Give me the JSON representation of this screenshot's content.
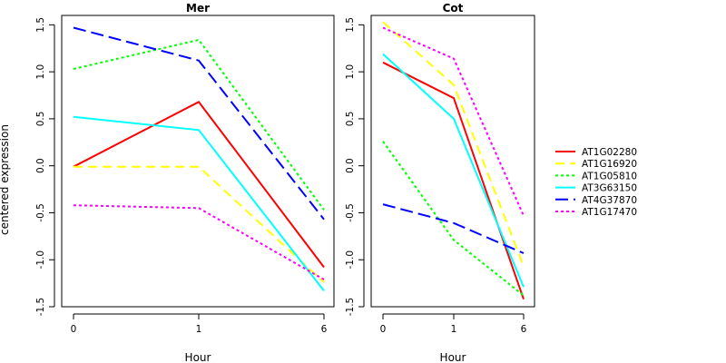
{
  "chart_data": {
    "type": "line",
    "ylabel": "centered expression",
    "xlabel": "Hour",
    "x": [
      "0",
      "1",
      "6"
    ],
    "ylim": [
      -1.5,
      1.6
    ],
    "yticks": [
      -1.5,
      -1.0,
      -0.5,
      0.0,
      0.5,
      1.0,
      1.5
    ],
    "ytick_labels": [
      "-1.5",
      "-1.0",
      "-0.5",
      "0.0",
      "0.5",
      "1.0",
      "1.5"
    ],
    "grid": false,
    "legend_position": "right",
    "panels": [
      {
        "title": "Mer",
        "series": [
          {
            "name": "AT1G02280",
            "values": [
              -0.01,
              0.68,
              -1.08
            ]
          },
          {
            "name": "AT1G16920",
            "values": [
              -0.01,
              -0.01,
              -1.24
            ]
          },
          {
            "name": "AT1G05810",
            "values": [
              1.03,
              1.34,
              -0.47
            ]
          },
          {
            "name": "AT3G63150",
            "values": [
              0.52,
              0.38,
              -1.33
            ]
          },
          {
            "name": "AT4G37870",
            "values": [
              1.47,
              1.12,
              -0.57
            ]
          },
          {
            "name": "AT1G17470",
            "values": [
              -0.42,
              -0.45,
              -1.21
            ]
          }
        ]
      },
      {
        "title": "Cot",
        "series": [
          {
            "name": "AT1G02280",
            "values": [
              1.1,
              0.72,
              -1.42
            ]
          },
          {
            "name": "AT1G16920",
            "values": [
              1.53,
              0.86,
              -1.07
            ]
          },
          {
            "name": "AT1G05810",
            "values": [
              0.26,
              -0.79,
              -1.38
            ]
          },
          {
            "name": "AT3G63150",
            "values": [
              1.19,
              0.5,
              -1.29
            ]
          },
          {
            "name": "AT4G37870",
            "values": [
              -0.41,
              -0.61,
              -0.93
            ]
          },
          {
            "name": "AT1G17470",
            "values": [
              1.47,
              1.14,
              -0.53
            ]
          }
        ]
      }
    ],
    "legend": [
      {
        "name": "AT1G02280",
        "color": "#ff0000",
        "style": "solid"
      },
      {
        "name": "AT1G16920",
        "color": "#ffff00",
        "style": "dashed"
      },
      {
        "name": "AT1G05810",
        "color": "#00ff00",
        "style": "dotted"
      },
      {
        "name": "AT3G63150",
        "color": "#00ffff",
        "style": "solid"
      },
      {
        "name": "AT4G37870",
        "color": "#0000ff",
        "style": "longdash"
      },
      {
        "name": "AT1G17470",
        "color": "#ff00ff",
        "style": "dotted"
      }
    ]
  }
}
